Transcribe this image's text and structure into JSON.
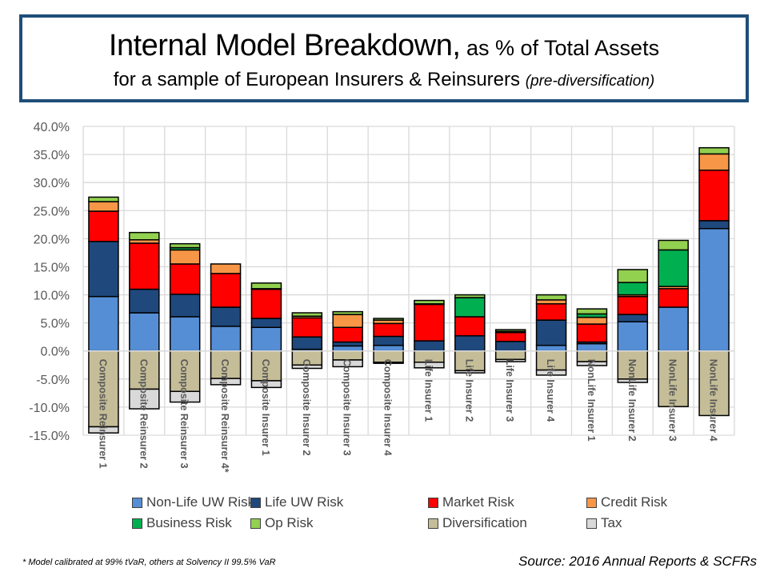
{
  "title": {
    "main": "Internal Model Breakdown,",
    "main_suffix": " as % of Total Assets",
    "subtitle": "for a sample of European Insurers & Reinsurers ",
    "subtitle_italic": "(pre-diversification)"
  },
  "footnote": "* Model calibrated at 99% tVaR, others at Solvency II 99.5% VaR",
  "source": "Source:  2016 Annual Reports & SCFRs",
  "chart_data": {
    "type": "bar",
    "stacked": true,
    "title": "Internal Model Breakdown, as % of Total Assets",
    "xlabel": "",
    "ylabel": "",
    "ylim": [
      -15,
      40
    ],
    "yticks": [
      -15,
      -10,
      -5,
      0,
      5,
      10,
      15,
      20,
      25,
      30,
      35,
      40
    ],
    "ytick_labels": [
      "-15.0%",
      "-10.0%",
      "-5.0%",
      "0.0%",
      "5.0%",
      "10.0%",
      "15.0%",
      "20.0%",
      "25.0%",
      "30.0%",
      "35.0%",
      "40.0%"
    ],
    "grid": true,
    "legend_position": "bottom",
    "categories": [
      "Composite Reinsurer 1",
      "Composite Reinsurer 2",
      "Composite Reinsurer 3",
      "Composite Reinsurer 4*",
      "Composite Insurer 1",
      "Composite Insurer 2",
      "Composite Insurer 3",
      "Composite Insurer 4",
      "Life Insurer 1",
      "Life Insurer 2",
      "Life Insurer 3",
      "Life Insurer 4",
      "NonLife Insurer 1",
      "NonLife Insurer 2",
      "NonLife Insurer 3",
      "NonLife Insurer 4"
    ],
    "series": [
      {
        "name": "Non-Life UW Risk",
        "color": "#558ED5",
        "values": [
          9.7,
          6.8,
          6.1,
          4.4,
          4.2,
          0.3,
          0.9,
          1.0,
          0.0,
          0.0,
          0.0,
          1.0,
          1.3,
          5.2,
          7.8,
          21.8
        ]
      },
      {
        "name": "Life UW Risk",
        "color": "#1F497D",
        "values": [
          9.8,
          4.2,
          4.0,
          3.4,
          1.6,
          2.2,
          0.7,
          1.6,
          1.8,
          2.7,
          1.7,
          4.5,
          0.3,
          1.3,
          0.0,
          1.4
        ]
      },
      {
        "name": "Market Risk",
        "color": "#FF0000",
        "values": [
          5.4,
          8.2,
          5.4,
          6.0,
          5.2,
          3.4,
          2.6,
          2.3,
          6.5,
          3.4,
          1.6,
          2.9,
          3.2,
          3.2,
          3.3,
          9.0
        ]
      },
      {
        "name": "Credit Risk",
        "color": "#F79646",
        "values": [
          1.7,
          0.6,
          2.5,
          1.7,
          0.0,
          0.3,
          2.3,
          0.6,
          0.0,
          0.0,
          0.0,
          0.7,
          1.2,
          0.3,
          0.4,
          2.9
        ]
      },
      {
        "name": "Business Risk",
        "color": "#00B050",
        "values": [
          0.0,
          0.0,
          0.4,
          0.0,
          0.1,
          0.0,
          0.0,
          0.0,
          0.1,
          3.4,
          0.2,
          0.0,
          0.6,
          2.2,
          6.5,
          0.0
        ]
      },
      {
        "name": "Op Risk",
        "color": "#92D050",
        "values": [
          0.8,
          1.3,
          0.7,
          0.0,
          1.0,
          0.6,
          0.5,
          0.3,
          0.6,
          0.5,
          0.3,
          0.9,
          0.9,
          2.3,
          1.7,
          1.1
        ]
      },
      {
        "name": "Diversification",
        "color": "#C4BD97",
        "values": [
          -13.5,
          -6.8,
          -7.2,
          -4.9,
          -5.3,
          -2.5,
          -1.6,
          -2.0,
          -2.0,
          -3.5,
          -1.5,
          -3.4,
          -1.9,
          -5.0,
          -9.9,
          -11.5
        ]
      },
      {
        "name": "Tax",
        "color": "#D9D9D9",
        "values": [
          -1.1,
          -3.5,
          -1.9,
          -1.1,
          -1.2,
          -0.6,
          -1.2,
          -0.2,
          -1.0,
          -0.4,
          -0.4,
          -0.9,
          -0.7,
          -0.6,
          0.0,
          0.0
        ]
      }
    ]
  }
}
